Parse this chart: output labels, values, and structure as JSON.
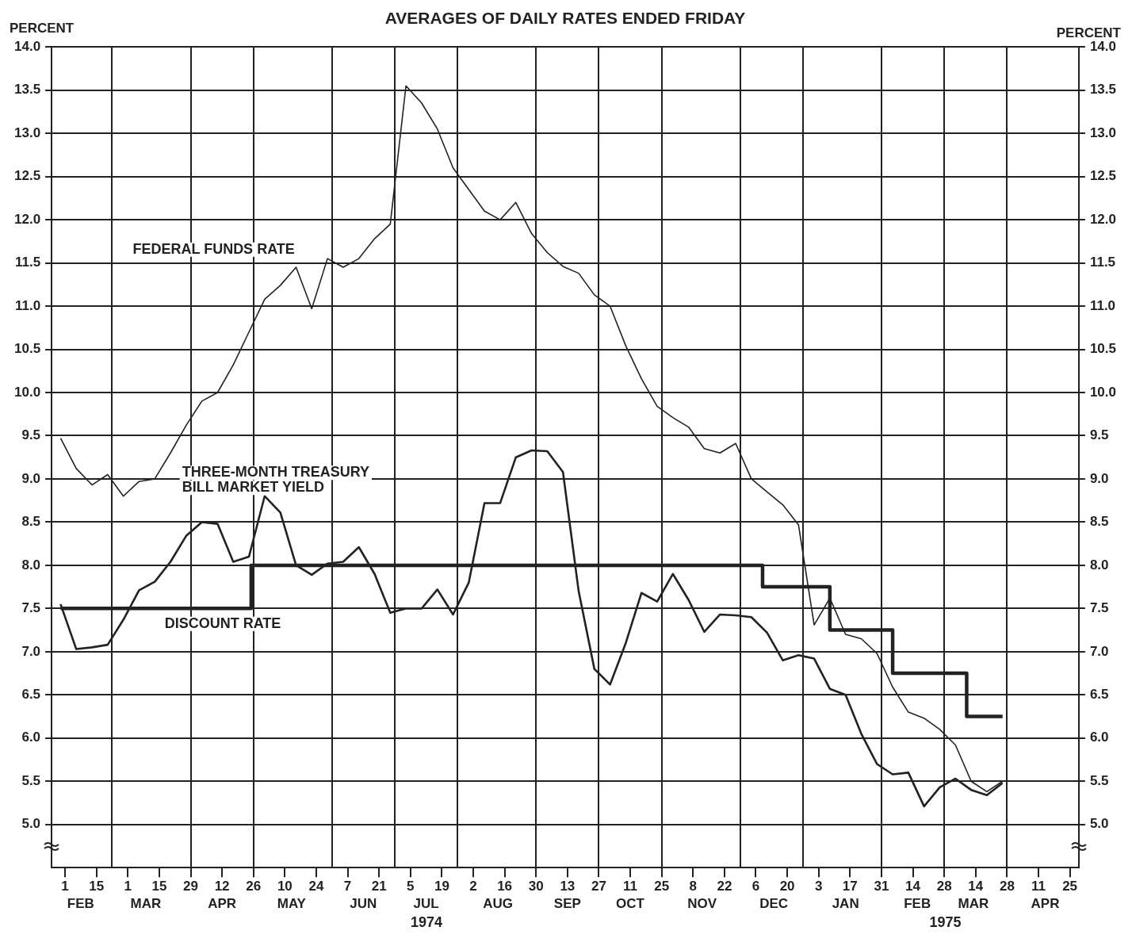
{
  "chart_data": {
    "type": "line",
    "title": "AVERAGES OF DAILY RATES ENDED FRIDAY",
    "ylabel": "PERCENT",
    "y2label": "PERCENT",
    "x": [
      "1974-01-30",
      "1974-02-06",
      "1974-02-13",
      "1974-02-20",
      "1974-02-27",
      "1974-03-06",
      "1974-03-13",
      "1974-03-20",
      "1974-03-27",
      "1974-04-03",
      "1974-04-10",
      "1974-04-17",
      "1974-04-24",
      "1974-05-01",
      "1974-05-08",
      "1974-05-15",
      "1974-05-22",
      "1974-05-29",
      "1974-06-05",
      "1974-06-12",
      "1974-06-19",
      "1974-06-26",
      "1974-07-03",
      "1974-07-10",
      "1974-07-17",
      "1974-07-24",
      "1974-07-31",
      "1974-08-07",
      "1974-08-14",
      "1974-08-21",
      "1974-08-28",
      "1974-09-04",
      "1974-09-11",
      "1974-09-18",
      "1974-09-25",
      "1974-10-02",
      "1974-10-09",
      "1974-10-16",
      "1974-10-23",
      "1974-10-30",
      "1974-11-06",
      "1974-11-13",
      "1974-11-20",
      "1974-11-27",
      "1974-12-04",
      "1974-12-11",
      "1974-12-18",
      "1974-12-25",
      "1975-01-01",
      "1975-01-08",
      "1975-01-15",
      "1975-01-22",
      "1975-01-29",
      "1975-02-05",
      "1975-02-12",
      "1975-02-19",
      "1975-02-26",
      "1975-03-05",
      "1975-03-12",
      "1975-03-19",
      "1975-03-26"
    ],
    "series": [
      {
        "name": "FEDERAL FUNDS RATE",
        "color": "#222222",
        "values": [
          9.47,
          9.12,
          8.93,
          9.05,
          8.8,
          8.97,
          9.0,
          9.3,
          9.62,
          9.9,
          10.0,
          10.32,
          10.7,
          11.08,
          11.24,
          11.45,
          10.97,
          11.55,
          11.45,
          11.55,
          11.78,
          11.95,
          13.55,
          13.35,
          13.05,
          12.6,
          12.35,
          12.1,
          12.0,
          12.2,
          11.84,
          11.62,
          11.46,
          11.38,
          11.13,
          11.0,
          10.54,
          10.16,
          9.84,
          9.71,
          9.6,
          9.35,
          9.3,
          9.41,
          9.0,
          8.85,
          8.7,
          8.47,
          7.31,
          7.62,
          7.2,
          7.15,
          6.98,
          6.59,
          6.3,
          6.23,
          6.1,
          5.92,
          5.5,
          5.38,
          5.5
        ]
      },
      {
        "name": "THREE-MONTH TREASURY BILL MARKET YIELD",
        "color": "#222222",
        "values": [
          7.55,
          7.03,
          7.05,
          7.08,
          7.37,
          7.71,
          7.81,
          8.04,
          8.34,
          8.5,
          8.48,
          8.04,
          8.1,
          8.8,
          8.61,
          8.0,
          7.89,
          8.02,
          8.04,
          8.21,
          7.9,
          7.45,
          7.5,
          7.5,
          7.72,
          7.43,
          7.8,
          8.72,
          8.72,
          9.25,
          9.33,
          9.32,
          9.08,
          7.7,
          6.8,
          6.62,
          7.1,
          7.68,
          7.58,
          7.9,
          7.6,
          7.23,
          7.43,
          7.42,
          7.4,
          7.22,
          6.9,
          6.96,
          6.92,
          6.57,
          6.5,
          6.05,
          5.7,
          5.58,
          5.6,
          5.21,
          5.43,
          5.53,
          5.4,
          5.34,
          5.48
        ]
      },
      {
        "name": "DISCOUNT RATE",
        "type": "step",
        "color": "#222222",
        "x": [
          "1974-01-30",
          "1974-04-25",
          "1974-12-09",
          "1975-01-08",
          "1975-02-05",
          "1975-03-10",
          "1975-03-26"
        ],
        "values": [
          7.5,
          8.0,
          7.75,
          7.25,
          6.75,
          6.25,
          6.25
        ]
      }
    ],
    "xlim": [
      "1974-01-26",
      "1975-04-29"
    ],
    "xticks": [
      {
        "value": "1974-02-01",
        "label": "1"
      },
      {
        "value": "1974-02-15",
        "label": "15"
      },
      {
        "value": "1974-03-01",
        "label": "1"
      },
      {
        "value": "1974-03-15",
        "label": "15"
      },
      {
        "value": "1974-03-29",
        "label": "29"
      },
      {
        "value": "1974-04-12",
        "label": "12"
      },
      {
        "value": "1974-04-26",
        "label": "26"
      },
      {
        "value": "1974-05-10",
        "label": "10"
      },
      {
        "value": "1974-05-24",
        "label": "24"
      },
      {
        "value": "1974-06-07",
        "label": "7"
      },
      {
        "value": "1974-06-21",
        "label": "21"
      },
      {
        "value": "1974-07-05",
        "label": "5"
      },
      {
        "value": "1974-07-19",
        "label": "19"
      },
      {
        "value": "1974-08-02",
        "label": "2"
      },
      {
        "value": "1974-08-16",
        "label": "16"
      },
      {
        "value": "1974-08-30",
        "label": "30"
      },
      {
        "value": "1974-09-13",
        "label": "13"
      },
      {
        "value": "1974-09-27",
        "label": "27"
      },
      {
        "value": "1974-10-11",
        "label": "11"
      },
      {
        "value": "1974-10-25",
        "label": "25"
      },
      {
        "value": "1974-11-08",
        "label": "8"
      },
      {
        "value": "1974-11-22",
        "label": "22"
      },
      {
        "value": "1974-12-06",
        "label": "6"
      },
      {
        "value": "1974-12-20",
        "label": "20"
      },
      {
        "value": "1975-01-03",
        "label": "3"
      },
      {
        "value": "1975-01-17",
        "label": "17"
      },
      {
        "value": "1975-01-31",
        "label": "31"
      },
      {
        "value": "1975-02-14",
        "label": "14"
      },
      {
        "value": "1975-02-28",
        "label": "28"
      },
      {
        "value": "1975-03-14",
        "label": "14"
      },
      {
        "value": "1975-03-28",
        "label": "28"
      },
      {
        "value": "1975-04-11",
        "label": "11"
      },
      {
        "value": "1975-04-25",
        "label": "25"
      }
    ],
    "x2lim": [
      "1974-01-26",
      "1975-04-29"
    ],
    "x2ticks": [
      {
        "value": "1974-02-08",
        "label": "FEB"
      },
      {
        "value": "1974-02-22",
        "label": null
      },
      {
        "value": "1974-03-09",
        "label": "MAR"
      },
      {
        "value": "1974-03-29",
        "label": null
      },
      {
        "value": "1974-04-12",
        "label": "APR"
      },
      {
        "value": "1974-04-26",
        "label": null
      },
      {
        "value": "1974-05-13",
        "label": "MAY"
      },
      {
        "value": "1974-05-31",
        "label": null
      },
      {
        "value": "1974-06-14",
        "label": "JUN"
      },
      {
        "value": "1974-06-28",
        "label": null
      },
      {
        "value": "1974-07-12",
        "label": "JUL"
      },
      {
        "value": "1974-07-26",
        "label": null
      },
      {
        "value": "1974-08-13",
        "label": "AUG"
      },
      {
        "value": "1974-08-30",
        "label": null
      },
      {
        "value": "1974-09-13",
        "label": "SEP"
      },
      {
        "value": "1974-09-27",
        "label": null
      },
      {
        "value": "1974-10-11",
        "label": "OCT"
      },
      {
        "value": "1974-10-25",
        "label": null
      },
      {
        "value": "1974-11-12",
        "label": "NOV"
      },
      {
        "value": "1974-11-29",
        "label": null
      },
      {
        "value": "1974-12-14",
        "label": "DEC"
      },
      {
        "value": "1974-12-27",
        "label": null
      },
      {
        "value": "1975-01-15",
        "label": "JAN"
      },
      {
        "value": "1975-01-31",
        "label": null
      },
      {
        "value": "1975-02-16",
        "label": "FEB"
      },
      {
        "value": "1975-02-28",
        "label": null
      },
      {
        "value": "1975-03-13",
        "label": "MAR"
      },
      {
        "value": "1975-03-28",
        "label": null
      },
      {
        "value": "1975-04-14",
        "label": "APR"
      }
    ],
    "ylim": [
      4.5,
      14
    ],
    "yticks": [
      {
        "value": 5,
        "label": "5.0"
      },
      {
        "value": 5.5,
        "label": "5.5"
      },
      {
        "value": 6,
        "label": "6.0"
      },
      {
        "value": 6.5,
        "label": "6.5"
      },
      {
        "value": 7,
        "label": "7.0"
      },
      {
        "value": 7.5,
        "label": "7.5"
      },
      {
        "value": 8,
        "label": "8.0"
      },
      {
        "value": 8.5,
        "label": "8.5"
      },
      {
        "value": 9,
        "label": "9.0"
      },
      {
        "value": 9.5,
        "label": "9.5"
      },
      {
        "value": 10,
        "label": "10.0"
      },
      {
        "value": 10.5,
        "label": "10.5"
      },
      {
        "value": 11,
        "label": "11.0"
      },
      {
        "value": 11.5,
        "label": "11.5"
      },
      {
        "value": 12,
        "label": "12.0"
      },
      {
        "value": 12.5,
        "label": "12.5"
      },
      {
        "value": 13,
        "label": "13.0"
      },
      {
        "value": 13.5,
        "label": "13.5"
      },
      {
        "value": 14,
        "label": "14.0"
      }
    ],
    "y2lim": [
      4.5,
      14
    ],
    "y2ticks": [
      {
        "value": 5,
        "label": "5.0"
      },
      {
        "value": 5.5,
        "label": "5.5"
      },
      {
        "value": 6,
        "label": "6.0"
      },
      {
        "value": 6.5,
        "label": "6.5"
      },
      {
        "value": 7,
        "label": "7.0"
      },
      {
        "value": 7.5,
        "label": "7.5"
      },
      {
        "value": 8,
        "label": "8.0"
      },
      {
        "value": 8.5,
        "label": "8.5"
      },
      {
        "value": 9,
        "label": "9.0"
      },
      {
        "value": 9.5,
        "label": "9.5"
      },
      {
        "value": 10,
        "label": "10.0"
      },
      {
        "value": 10.5,
        "label": "10.5"
      },
      {
        "value": 11,
        "label": "11.0"
      },
      {
        "value": 11.5,
        "label": "11.5"
      },
      {
        "value": 12,
        "label": "12.0"
      },
      {
        "value": 12.5,
        "label": "12.5"
      },
      {
        "value": 13,
        "label": "13.0"
      },
      {
        "value": 13.5,
        "label": "13.5"
      },
      {
        "value": 14,
        "label": "14.0"
      }
    ],
    "annotations": [
      "1974",
      "1975"
    ],
    "grid": true,
    "legend": false
  }
}
